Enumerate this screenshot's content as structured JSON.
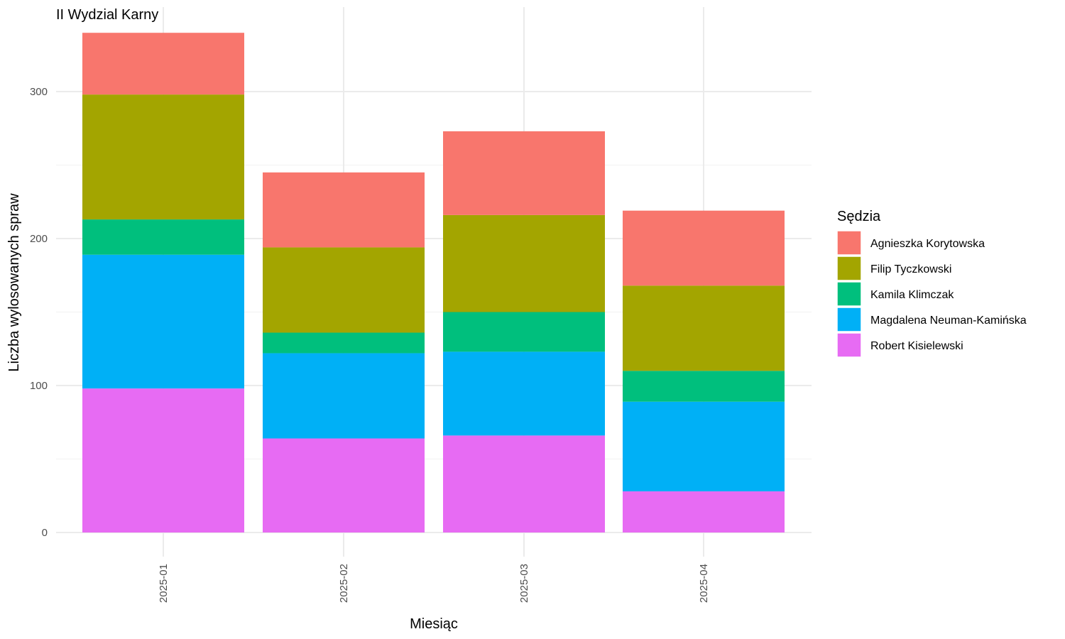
{
  "chart_data": {
    "type": "bar",
    "stacked": true,
    "title": "II Wydzial Karny",
    "xlabel": "Miesiąc",
    "ylabel": "Liczba wylosowanych spraw",
    "categories": [
      "2025-01",
      "2025-02",
      "2025-03",
      "2025-04"
    ],
    "ylim": [
      0,
      342
    ],
    "yticks": [
      0,
      100,
      200,
      300
    ],
    "grid": true,
    "legend": {
      "title": "Sędzia",
      "position": "right"
    },
    "series": [
      {
        "name": "Robert Kisielewski",
        "color": "#E76BF3",
        "values": [
          98,
          64,
          66,
          28
        ]
      },
      {
        "name": "Magdalena Neuman-Kamińska",
        "color": "#00B0F6",
        "values": [
          91,
          58,
          57,
          61
        ]
      },
      {
        "name": "Kamila Klimczak",
        "color": "#00BF7D",
        "values": [
          24,
          14,
          27,
          21
        ]
      },
      {
        "name": "Filip Tyczkowski",
        "color": "#A3A500",
        "values": [
          85,
          58,
          66,
          58
        ]
      },
      {
        "name": "Agnieszka Korytowska",
        "color": "#F8766D",
        "values": [
          42,
          51,
          57,
          51
        ]
      }
    ],
    "legend_order": [
      "Agnieszka Korytowska",
      "Filip Tyczkowski",
      "Kamila Klimczak",
      "Magdalena Neuman-Kamińska",
      "Robert Kisielewski"
    ]
  }
}
